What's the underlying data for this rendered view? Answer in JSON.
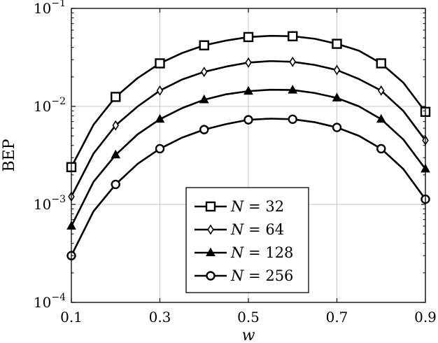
{
  "chart_data": {
    "type": "line",
    "xlabel": "w",
    "ylabel": "BEP",
    "x_ticks": [
      "0.1",
      "0.3",
      "0.5",
      "0.7",
      "0.9"
    ],
    "y_ticks": [
      {
        "base": "10",
        "exp": "−1",
        "value": 0.1
      },
      {
        "base": "10",
        "exp": "−2",
        "value": 0.01
      },
      {
        "base": "10",
        "exp": "−3",
        "value": 0.001
      },
      {
        "base": "10",
        "exp": "−4",
        "value": 0.0001
      }
    ],
    "xlim": [
      0.1,
      0.9
    ],
    "ylim": [
      0.0001,
      0.1
    ],
    "y_scale": "log",
    "grid": true,
    "legend_position": "bottom-center",
    "series": [
      {
        "name": "N = 32",
        "label_var": "N",
        "label_value": "32",
        "marker": "square",
        "x": [
          0.1,
          0.15,
          0.2,
          0.25,
          0.3,
          0.35,
          0.4,
          0.45,
          0.5,
          0.55,
          0.6,
          0.65,
          0.7,
          0.75,
          0.8,
          0.85,
          0.9
        ],
        "y": [
          0.0024,
          0.0065,
          0.0125,
          0.0195,
          0.0275,
          0.035,
          0.042,
          0.047,
          0.051,
          0.0525,
          0.052,
          0.049,
          0.0435,
          0.037,
          0.0275,
          0.0175,
          0.0088
        ]
      },
      {
        "name": "N = 64",
        "label_var": "N",
        "label_value": "64",
        "marker": "diamond",
        "x": [
          0.1,
          0.15,
          0.2,
          0.25,
          0.3,
          0.35,
          0.4,
          0.45,
          0.5,
          0.55,
          0.6,
          0.65,
          0.7,
          0.75,
          0.8,
          0.85,
          0.9
        ],
        "y": [
          0.0012,
          0.0033,
          0.0064,
          0.01,
          0.0145,
          0.0188,
          0.0225,
          0.0255,
          0.028,
          0.029,
          0.0285,
          0.0265,
          0.0235,
          0.019,
          0.0145,
          0.009,
          0.0045
        ]
      },
      {
        "name": "N = 128",
        "label_var": "N",
        "label_value": "128",
        "marker": "triangle",
        "x": [
          0.1,
          0.15,
          0.2,
          0.25,
          0.3,
          0.35,
          0.4,
          0.45,
          0.5,
          0.55,
          0.6,
          0.65,
          0.7,
          0.75,
          0.8,
          0.85,
          0.9
        ],
        "y": [
          0.0006,
          0.0017,
          0.0032,
          0.0052,
          0.0074,
          0.0096,
          0.0117,
          0.0133,
          0.0143,
          0.0148,
          0.0147,
          0.0137,
          0.0122,
          0.01,
          0.0074,
          0.0046,
          0.0023
        ]
      },
      {
        "name": "N = 256",
        "label_var": "N",
        "label_value": "256",
        "marker": "circle",
        "x": [
          0.1,
          0.15,
          0.2,
          0.25,
          0.3,
          0.35,
          0.4,
          0.45,
          0.5,
          0.55,
          0.6,
          0.65,
          0.7,
          0.75,
          0.8,
          0.85,
          0.9
        ],
        "y": [
          0.0003,
          0.00085,
          0.0016,
          0.0026,
          0.0037,
          0.0048,
          0.0058,
          0.0066,
          0.0073,
          0.0075,
          0.0074,
          0.0069,
          0.0061,
          0.005,
          0.0037,
          0.0023,
          0.00113
        ]
      }
    ],
    "marker_x": [
      0.1,
      0.2,
      0.3,
      0.4,
      0.5,
      0.6,
      0.7,
      0.8,
      0.9
    ]
  }
}
